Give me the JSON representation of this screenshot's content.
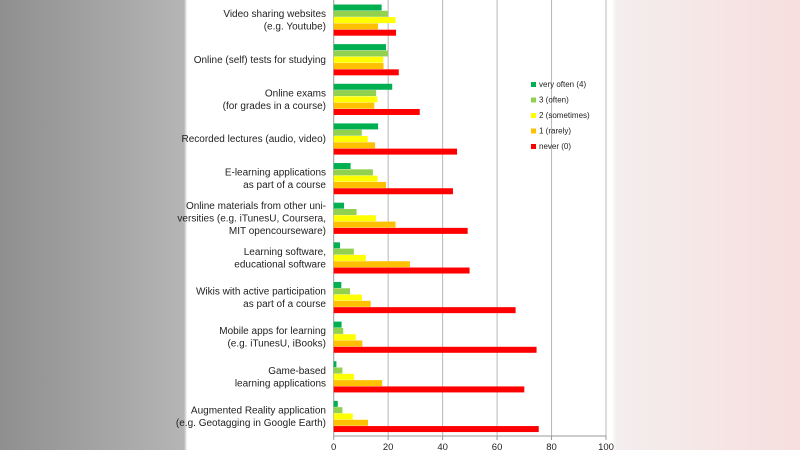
{
  "chart_data": {
    "type": "bar",
    "orientation": "horizontal",
    "categories": [
      [
        "Video sharing websites",
        "(e.g. Youtube)"
      ],
      [
        "Online (self) tests for studying"
      ],
      [
        "Online exams",
        "(for grades in a course)"
      ],
      [
        "Recorded lectures (audio, video)"
      ],
      [
        "E-learning applications",
        "as part of a course"
      ],
      [
        "Online materials from other uni-",
        "versities (e.g. iTunesU, Coursera,",
        "MIT opencourseware)"
      ],
      [
        "Learning software,",
        "educational software"
      ],
      [
        "Wikis with active participation",
        "as part of a course"
      ],
      [
        "Mobile apps for learning",
        "(e.g. iTunesU, iBooks)"
      ],
      [
        "Game-based",
        "learning applications"
      ],
      [
        "Augmented Reality application",
        "(e.g. Geotagging in Google Earth)"
      ]
    ],
    "series": [
      {
        "name": "very often (4)",
        "color": "#00b050",
        "values": [
          17.6,
          19.2,
          21.5,
          16.3,
          6.2,
          3.8,
          2.3,
          2.8,
          2.9,
          1.0,
          1.5
        ]
      },
      {
        "name": "3 (often)",
        "color": "#92d050",
        "values": [
          19.9,
          19.9,
          15.6,
          10.3,
          14.4,
          8.4,
          7.4,
          6.0,
          3.5,
          3.2,
          3.2
        ]
      },
      {
        "name": "2 (sometimes)",
        "color": "#ffff00",
        "values": [
          22.7,
          18.2,
          16.0,
          12.5,
          16.1,
          15.5,
          11.8,
          10.4,
          8.1,
          7.5,
          7.0
        ]
      },
      {
        "name": "1 (rarely)",
        "color": "#ffc000",
        "values": [
          16.3,
          18.3,
          14.9,
          15.2,
          19.2,
          22.7,
          28.0,
          13.6,
          10.5,
          17.8,
          12.6
        ]
      },
      {
        "name": "never (0)",
        "color": "#ff0000",
        "values": [
          22.9,
          23.9,
          31.6,
          45.3,
          43.8,
          49.2,
          49.9,
          66.8,
          74.5,
          70.0,
          75.3
        ]
      }
    ],
    "xlim": [
      0,
      100
    ],
    "xticks": [
      "0",
      "20",
      "40",
      "60",
      "80",
      "100"
    ],
    "grid": "vertical",
    "legend": "right"
  }
}
